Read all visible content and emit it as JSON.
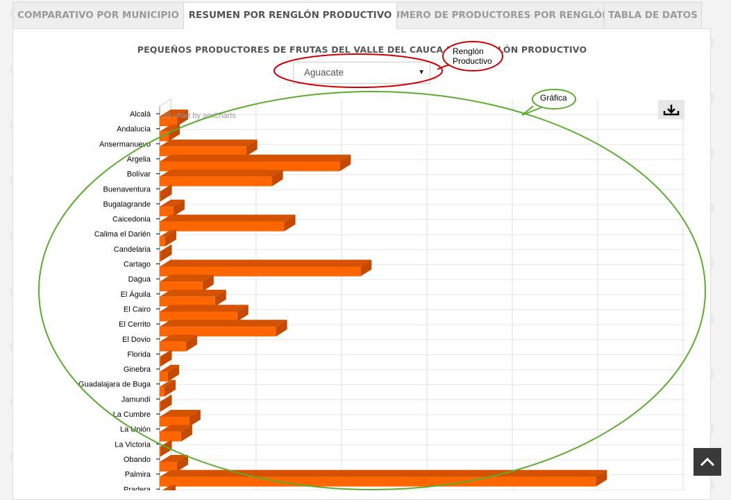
{
  "tabs": [
    {
      "label": "COMPARATIVO POR MUNICIPIO",
      "active": false
    },
    {
      "label": "RESUMEN POR RENGLÓN PRODUCTIVO",
      "active": true
    },
    {
      "label": "NÚMERO DE PRODUCTORES POR RENGLÓN",
      "active": false
    },
    {
      "label": "TABLA DE DATOS",
      "active": false
    }
  ],
  "chart_title": "PEQUEÑOS PRODUCTORES DE FRUTAS DEL VALLE DEL CAUCA POR RENGLÓN PRODUCTIVO",
  "selector": {
    "value": "Aguacate"
  },
  "watermark": "JS chart by amCharts",
  "annotations": {
    "renglon_line1": "Renglón",
    "renglon_line2": "Productivo",
    "grafica": "Gráfica"
  },
  "icons": {
    "download": "download-icon",
    "scroll_top": "chevron-up-icon"
  },
  "colors": {
    "bar_front": "#ff6600",
    "bar_top": "#d45200",
    "bar_side": "#c54a00",
    "annotation_red": "#cc0000",
    "annotation_green": "#5aac2e"
  },
  "chart_data": {
    "type": "bar",
    "orientation": "horizontal",
    "style": "3d",
    "grid": true,
    "categories": [
      "Alcalá",
      "Andalucía",
      "Ansermanuevo",
      "Argelia",
      "Bolívar",
      "Buenaventura",
      "Bugalagrande",
      "Caicedonia",
      "Calima el Darién",
      "Candelaria",
      "Cartago",
      "Dagua",
      "El Águila",
      "El Cairo",
      "El Cerrito",
      "El Dovio",
      "Florida",
      "Ginebra",
      "Guadalajara de Buga",
      "Jamundí",
      "La Cumbre",
      "La Unión",
      "La Victoria",
      "Obando",
      "Palmira",
      "Pradera"
    ],
    "values": [
      25,
      13,
      125,
      260,
      162,
      1,
      20,
      180,
      8,
      1,
      290,
      62,
      80,
      112,
      168,
      38,
      1,
      12,
      7,
      1,
      43,
      31,
      1,
      25,
      630,
      7
    ],
    "xlim": [
      0,
      760
    ]
  }
}
